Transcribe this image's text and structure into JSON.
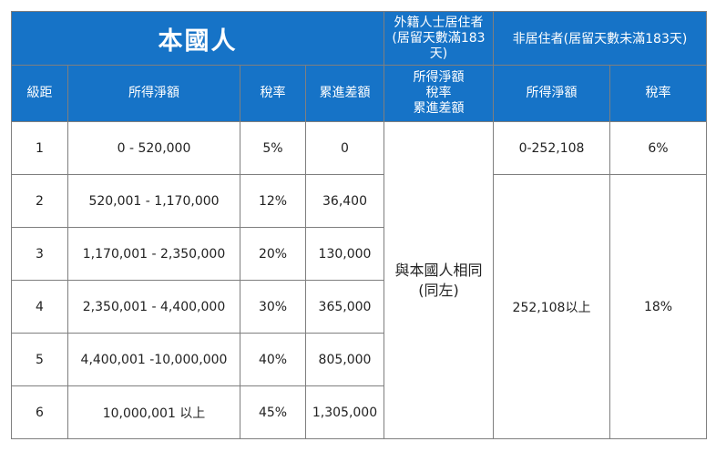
{
  "title": "本國人",
  "foreign_header": "外籍人士居住者(居留天數滿183天)",
  "nonresident_header": "非居住者(居留天數未滿183天)",
  "columns": {
    "bracket": "級距",
    "income": "所得淨額",
    "rate": "稅率",
    "deduction": "累進差額",
    "foreign_line1": "所得淨額",
    "foreign_line2": "稅率",
    "foreign_line3": "累進差額",
    "nonres_income": "所得淨額",
    "nonres_rate": "稅率"
  },
  "rows": [
    {
      "bracket": "1",
      "income": "0 - 520,000",
      "rate": "5%",
      "deduction": "0"
    },
    {
      "bracket": "2",
      "income": "520,001 - 1,170,000",
      "rate": "12%",
      "deduction": "36,400"
    },
    {
      "bracket": "3",
      "income": "1,170,001 - 2,350,000",
      "rate": "20%",
      "deduction": "130,000"
    },
    {
      "bracket": "4",
      "income": "2,350,001 - 4,400,000",
      "rate": "30%",
      "deduction": "365,000"
    },
    {
      "bracket": "5",
      "income": "4,400,001 -10,000,000",
      "rate": "40%",
      "deduction": "805,000"
    },
    {
      "bracket": "6",
      "income": "10,000,001 以上",
      "rate": "45%",
      "deduction": "1,305,000"
    }
  ],
  "foreign_same_line1": "與本國人相同",
  "foreign_same_line2": "(同左)",
  "nonresident": {
    "row1_income": "0-252,108",
    "row1_rate": "6%",
    "row2_income": "252,108以上",
    "row2_rate": "18%"
  }
}
